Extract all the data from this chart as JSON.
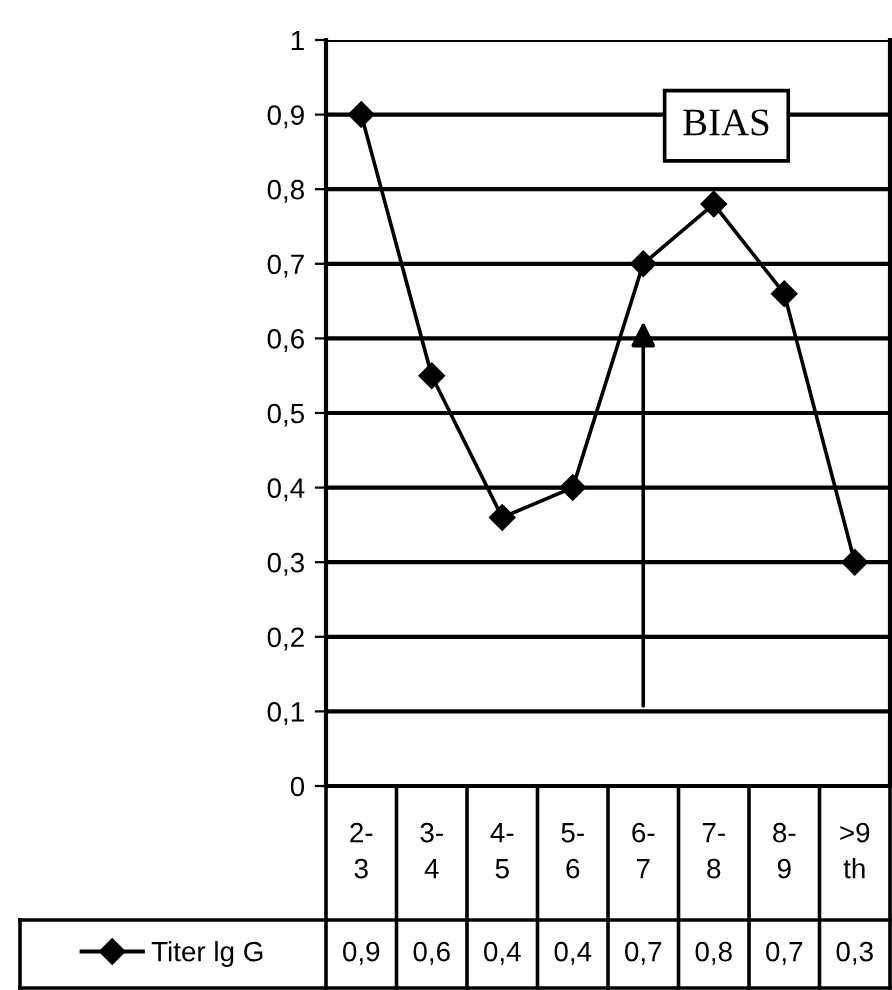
{
  "chart_data": {
    "type": "line",
    "categories": [
      "2-3",
      "3-4",
      "4-5",
      "5-6",
      "6-7",
      "7-8",
      "8-9",
      ">9 th"
    ],
    "series": [
      {
        "name": "Titer lg G",
        "color": "#000000",
        "values": [
          0.9,
          0.55,
          0.36,
          0.4,
          0.7,
          0.78,
          0.66,
          0.3
        ],
        "value_labels": [
          "0,9",
          "0,6",
          "0,4",
          "0,4",
          "0,7",
          "0,8",
          "0,7",
          "0,3"
        ]
      }
    ],
    "ylim": [
      0,
      1
    ],
    "yticks": [
      0,
      {
        "value": 0.1,
        "label": "0,1"
      },
      {
        "value": 0.2,
        "label": "0,2"
      },
      {
        "value": 0.3,
        "label": "0,3"
      },
      {
        "value": 0.4,
        "label": "0,4"
      },
      {
        "value": 0.5,
        "label": "0,5"
      },
      {
        "value": 0.6,
        "label": "0,6"
      },
      {
        "value": 0.7,
        "label": "0,7"
      },
      {
        "value": 0.8,
        "label": "0,8"
      },
      {
        "value": 0.9,
        "label": "0,9"
      },
      1
    ],
    "grid": "y",
    "marker": "diamond",
    "line_style": "solid",
    "legend": "bottom left",
    "annotations": [
      "BIAS"
    ]
  }
}
